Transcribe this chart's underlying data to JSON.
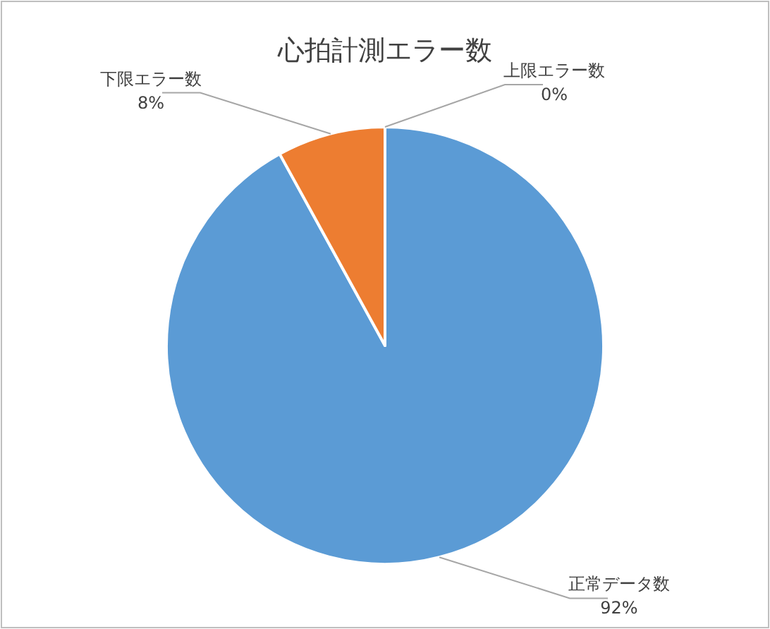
{
  "chart_data": {
    "type": "pie",
    "title": "心拍計測エラー数",
    "categories": [
      "正常データ数",
      "下限エラー数",
      "上限エラー数"
    ],
    "values": [
      92,
      8,
      0
    ],
    "colors": [
      "#5b9bd5",
      "#ed7d31",
      "#a5a5a5"
    ],
    "value_labels": [
      "92%",
      "8%",
      "0%"
    ]
  }
}
